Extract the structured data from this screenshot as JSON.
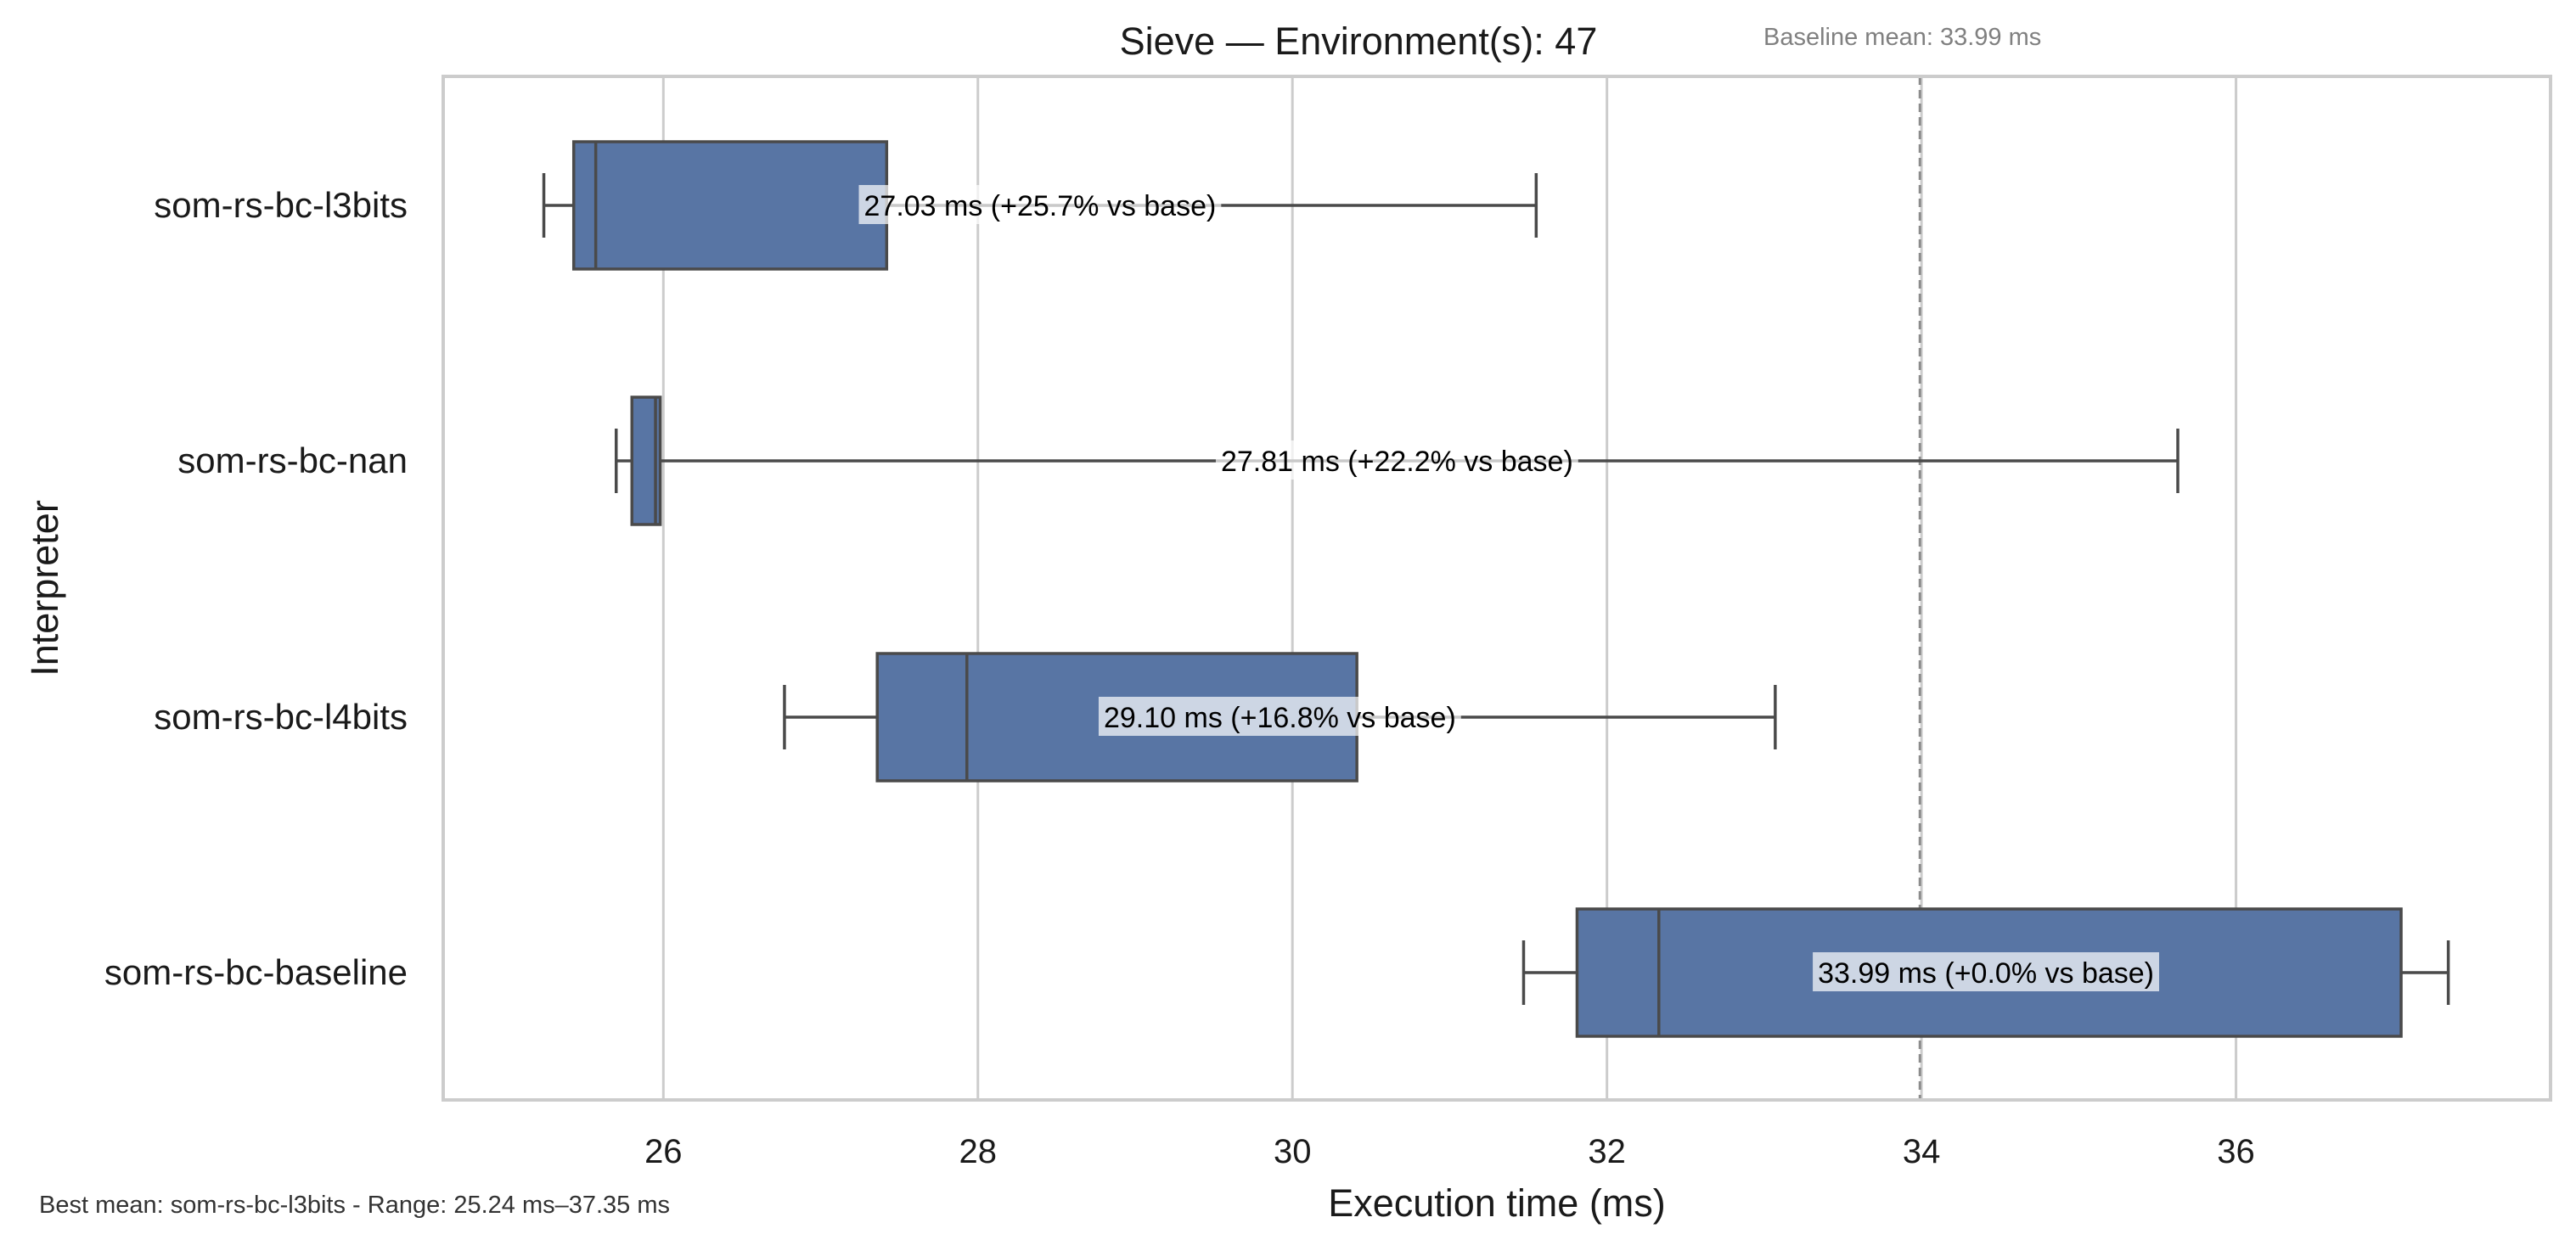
{
  "chart_data": {
    "type": "box",
    "title": "Sieve — Environment(s): 47",
    "subtitle": "Baseline mean: 33.99 ms",
    "xlabel": "Execution time (ms)",
    "ylabel": "Interpreter",
    "xlim": [
      24.6,
      38.0
    ],
    "xticks": [
      26,
      28,
      30,
      32,
      34,
      36
    ],
    "grid": "vertical",
    "box_color": "#5875a4",
    "edge_color": "#4a4a4a",
    "baseline_line_color": "#8c8c8c",
    "baseline_mean": 33.99,
    "categories": [
      "som-rs-bc-l3bits",
      "som-rs-bc-nan",
      "som-rs-bc-l4bits",
      "som-rs-bc-baseline"
    ],
    "boxes": [
      {
        "name": "som-rs-bc-l3bits",
        "whisker_low": 25.24,
        "q1": 25.43,
        "median": 25.57,
        "q3": 27.42,
        "whisker_high": 31.55,
        "label": "27.03 ms  (+25.7% vs base)"
      },
      {
        "name": "som-rs-bc-nan",
        "whisker_low": 25.7,
        "q1": 25.8,
        "median": 25.95,
        "q3": 25.98,
        "whisker_high": 35.63,
        "label": "27.81 ms  (+22.2% vs base)"
      },
      {
        "name": "som-rs-bc-l4bits",
        "whisker_low": 26.77,
        "q1": 27.36,
        "median": 27.93,
        "q3": 30.41,
        "whisker_high": 33.07,
        "label": "29.10 ms  (+16.8% vs base)"
      },
      {
        "name": "som-rs-bc-baseline",
        "whisker_low": 31.47,
        "q1": 31.81,
        "median": 32.33,
        "q3": 37.05,
        "whisker_high": 37.35,
        "label": "33.99 ms  (+0.0% vs base)"
      }
    ],
    "footnote": "Best mean: som-rs-bc-l3bits - Range: 25.24 ms–37.35 ms"
  }
}
